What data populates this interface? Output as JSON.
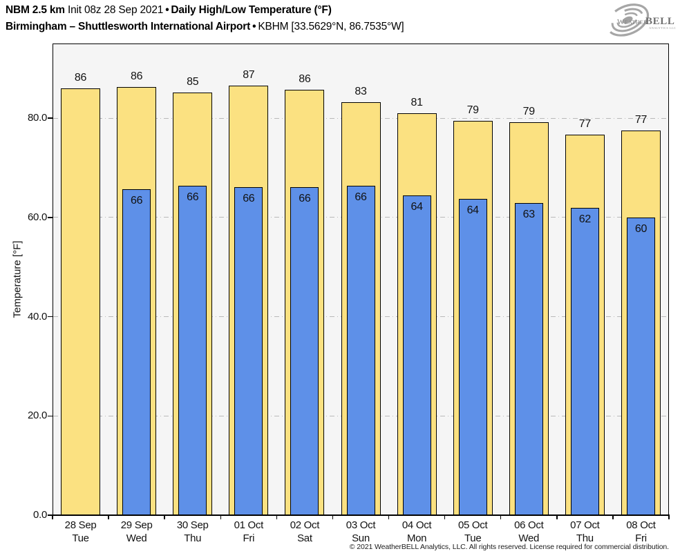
{
  "header": {
    "model": "NBM 2.5 km",
    "init": "Init 08z 28 Sep 2021",
    "sep": "•",
    "product": "Daily High/Low Temperature (°F)",
    "location": "Birmingham – Shuttlesworth International Airport",
    "station": "KBHM [33.5629°N, 86.7535°W]"
  },
  "logo": {
    "brand_weather": "Weather",
    "brand_bell": "BELL",
    "brand_sub": "Analytics LLC",
    "swirl_color": "#a6a6a6",
    "text_color": "#7d7d7d"
  },
  "chart_data": {
    "type": "bar",
    "title": "NBM 2.5 km Init 08z 28 Sep 2021 • Daily High/Low Temperature (°F)",
    "subtitle": "Birmingham – Shuttlesworth International Airport • KBHM [33.5629°N, 86.7535°W]",
    "xlabel": "",
    "ylabel": "Temperature [°F]",
    "ylim": [
      0,
      95.2
    ],
    "yticks": [
      0,
      20,
      40,
      60,
      80
    ],
    "ytick_labels": [
      "0.0",
      "20.0",
      "40.0",
      "60.0",
      "80.0"
    ],
    "grid": "horizontal dash-dot at 20/40/60/80",
    "legend_position": "none",
    "plot_bg": "#f5f5f5",
    "categories": [
      {
        "date": "28 Sep",
        "day": "Tue"
      },
      {
        "date": "29 Sep",
        "day": "Wed"
      },
      {
        "date": "30 Sep",
        "day": "Thu"
      },
      {
        "date": "01 Oct",
        "day": "Fri"
      },
      {
        "date": "02 Oct",
        "day": "Sat"
      },
      {
        "date": "03 Oct",
        "day": "Sun"
      },
      {
        "date": "04 Oct",
        "day": "Mon"
      },
      {
        "date": "05 Oct",
        "day": "Tue"
      },
      {
        "date": "06 Oct",
        "day": "Wed"
      },
      {
        "date": "07 Oct",
        "day": "Thu"
      },
      {
        "date": "08 Oct",
        "day": "Fri"
      }
    ],
    "series": [
      {
        "name": "Daily High",
        "color": "#FBE181",
        "values": [
          86,
          86,
          85,
          87,
          86,
          83,
          81,
          79,
          79,
          77,
          77
        ],
        "plot_values": [
          86.0,
          86.3,
          85.2,
          86.6,
          85.7,
          83.2,
          81.0,
          79.4,
          79.2,
          76.6,
          77.5
        ]
      },
      {
        "name": "Daily Low",
        "color": "#5E90E8",
        "values": [
          null,
          66,
          66,
          66,
          66,
          66,
          64,
          64,
          63,
          62,
          60
        ],
        "plot_values": [
          null,
          65.7,
          66.4,
          66.1,
          66.1,
          66.3,
          64.4,
          63.7,
          62.9,
          61.9,
          59.9
        ]
      }
    ]
  },
  "footer": "© 2021 WeatherBELL Analytics, LLC. All rights reserved. License required for commercial distribution."
}
